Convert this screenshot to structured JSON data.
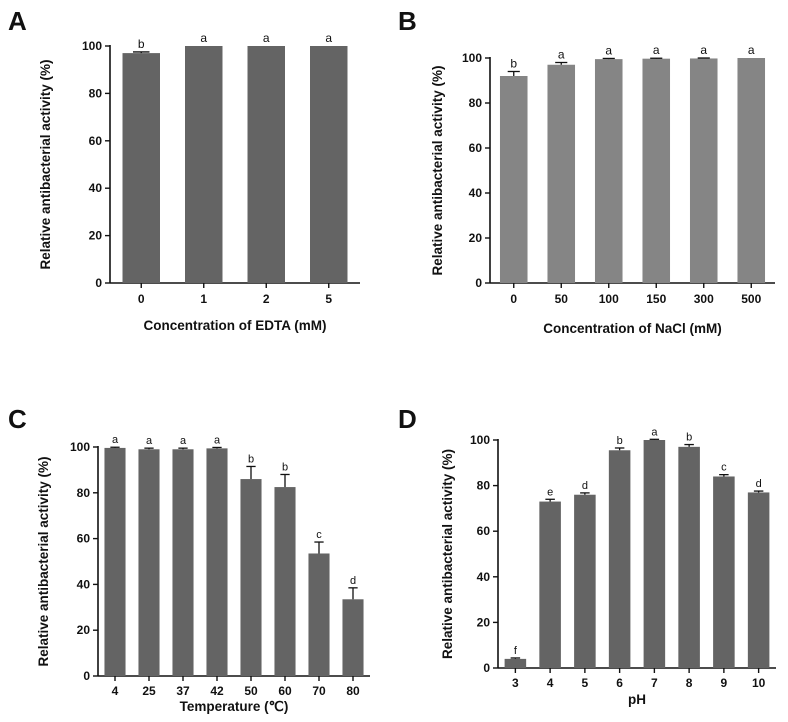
{
  "chart_data": [
    {
      "panel": "A",
      "type": "bar",
      "categories": [
        "0",
        "1",
        "2",
        "5"
      ],
      "values": [
        97,
        100,
        100,
        100
      ],
      "errors": [
        0.5,
        0,
        0,
        0
      ],
      "significance": [
        "b",
        "a",
        "a",
        "a"
      ],
      "xlabel": "Concentration of EDTA (mM)",
      "ylabel": "Relative antibacterial activity (%)",
      "ylim": [
        0,
        100
      ],
      "yticks": [
        0,
        20,
        40,
        60,
        80,
        100
      ],
      "bar_color": "#646464"
    },
    {
      "panel": "B",
      "type": "bar",
      "categories": [
        "0",
        "50",
        "100",
        "150",
        "300",
        "500"
      ],
      "values": [
        92,
        97,
        99.5,
        99.7,
        99.8,
        100
      ],
      "errors": [
        2,
        1,
        0.3,
        0.2,
        0.2,
        0
      ],
      "significance": [
        "b",
        "a",
        "a",
        "a",
        "a",
        "a"
      ],
      "xlabel": "Concentration of NaCl (mM)",
      "ylabel": "Relative antibacterial activity (%)",
      "ylim": [
        0,
        100
      ],
      "yticks": [
        0,
        20,
        40,
        60,
        80,
        100
      ],
      "bar_color": "#858585"
    },
    {
      "panel": "C",
      "type": "bar",
      "categories": [
        "4",
        "25",
        "37",
        "42",
        "50",
        "60",
        "70",
        "80"
      ],
      "values": [
        99.6,
        99,
        99,
        99.4,
        86,
        82.5,
        53.5,
        33.5
      ],
      "errors": [
        0.3,
        0.5,
        0.5,
        0.4,
        5.5,
        5.5,
        5,
        5
      ],
      "significance": [
        "a",
        "a",
        "a",
        "a",
        "b",
        "b",
        "c",
        "d"
      ],
      "xlabel": "Temperature (℃)",
      "ylabel": "Relative antibacterial activity (%)",
      "ylim": [
        0,
        100
      ],
      "yticks": [
        0,
        20,
        40,
        60,
        80,
        100
      ],
      "bar_color": "#646464"
    },
    {
      "panel": "D",
      "type": "bar",
      "categories": [
        "3",
        "4",
        "5",
        "6",
        "7",
        "8",
        "9",
        "10"
      ],
      "values": [
        4,
        73,
        76,
        95.5,
        100,
        97,
        84,
        77
      ],
      "errors": [
        0.4,
        1,
        0.8,
        1,
        0.3,
        1,
        0.8,
        0.6
      ],
      "significance": [
        "f",
        "e",
        "d",
        "b",
        "a",
        "b",
        "c",
        "d"
      ],
      "xlabel": "pH",
      "ylabel": "Relative antibacterial activity (%)",
      "ylim": [
        0,
        100
      ],
      "yticks": [
        0,
        20,
        40,
        60,
        80,
        100
      ],
      "bar_color": "#646464"
    }
  ]
}
